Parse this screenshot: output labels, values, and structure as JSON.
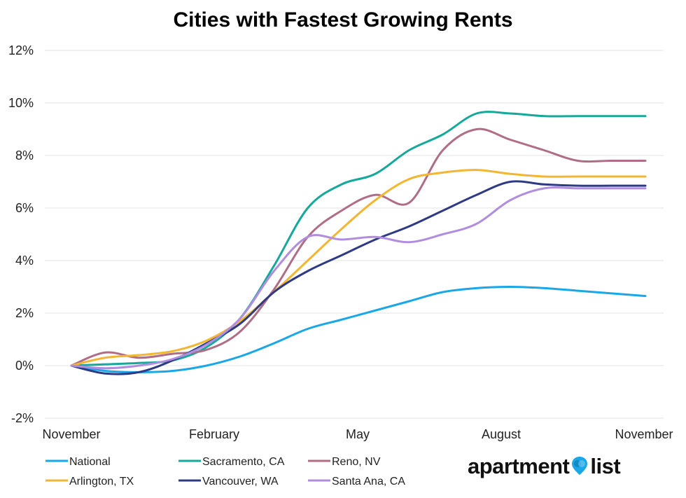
{
  "chart_data": {
    "type": "line",
    "title": "Cities with Fastest Growing Rents",
    "xlabel": "",
    "ylabel": "",
    "x_ticks": [
      "November",
      "February",
      "May",
      "August",
      "November"
    ],
    "y_ticks": [
      "-2%",
      "0%",
      "2%",
      "4%",
      "6%",
      "8%",
      "10%",
      "12%"
    ],
    "ylim": [
      -2,
      12
    ],
    "grid": "horizontal",
    "legend_position": "bottom",
    "series": [
      {
        "name": "National",
        "color": "#1aa7e8",
        "values": [
          0,
          -0.2,
          -0.25,
          -0.2,
          0,
          0.35,
          0.85,
          1.4,
          1.75,
          2.1,
          2.45,
          2.8,
          2.95,
          3.0,
          2.95,
          2.85,
          2.75,
          2.65
        ]
      },
      {
        "name": "Sacramento, CA",
        "color": "#16a89a",
        "values": [
          0,
          0.05,
          0.1,
          0.2,
          0.7,
          1.8,
          3.8,
          6.0,
          6.9,
          7.3,
          8.2,
          8.8,
          9.6,
          9.6,
          9.5,
          9.5,
          9.5,
          9.5
        ]
      },
      {
        "name": "Reno, NV",
        "color": "#b06e86",
        "values": [
          0,
          0.5,
          0.3,
          0.45,
          0.6,
          1.3,
          2.9,
          4.9,
          5.9,
          6.5,
          6.2,
          8.2,
          9.0,
          8.6,
          8.2,
          7.8,
          7.8,
          7.8
        ]
      },
      {
        "name": "Arlington, TX",
        "color": "#f2b632",
        "values": [
          0,
          0.3,
          0.4,
          0.55,
          0.95,
          1.7,
          2.8,
          4.0,
          5.2,
          6.3,
          7.1,
          7.35,
          7.45,
          7.3,
          7.2,
          7.2,
          7.2,
          7.2
        ]
      },
      {
        "name": "Vancouver, WA",
        "color": "#2e3b84",
        "values": [
          0,
          -0.3,
          -0.25,
          0.2,
          0.85,
          1.6,
          2.8,
          3.6,
          4.2,
          4.8,
          5.3,
          5.9,
          6.5,
          7.0,
          6.9,
          6.85,
          6.85,
          6.85
        ]
      },
      {
        "name": "Santa Ana, CA",
        "color": "#b18de0",
        "values": [
          0,
          -0.1,
          0.0,
          0.25,
          0.8,
          1.8,
          3.6,
          4.9,
          4.8,
          4.9,
          4.7,
          5.0,
          5.4,
          6.3,
          6.75,
          6.75,
          6.75,
          6.75
        ]
      }
    ]
  },
  "logo": {
    "text_left": "apartment",
    "text_right": "list",
    "pin_color": "#1aa7e8"
  }
}
